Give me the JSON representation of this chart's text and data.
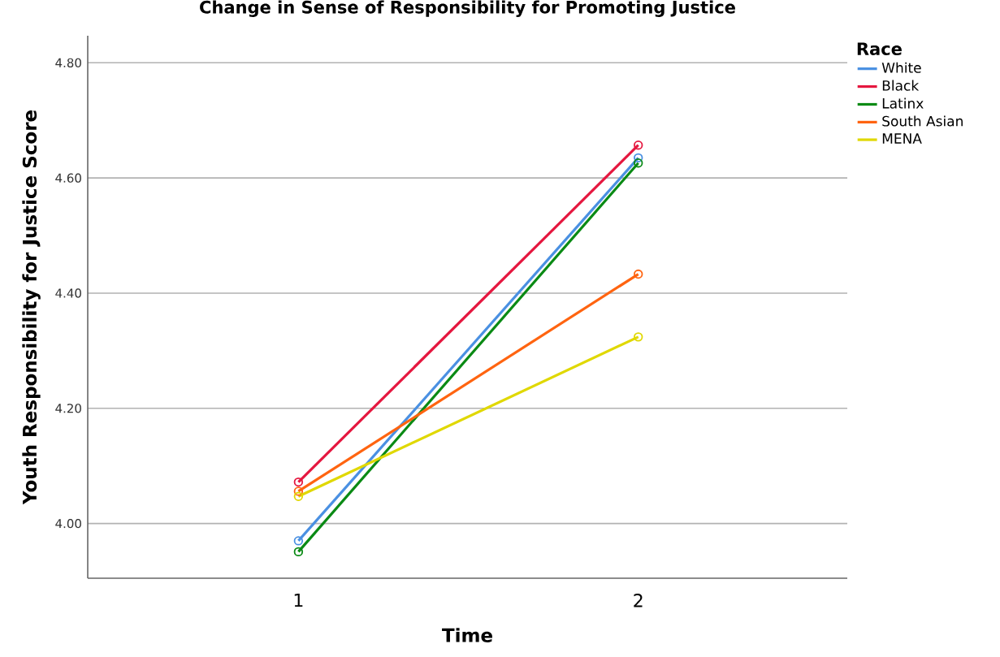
{
  "chart_data": {
    "type": "line",
    "title": "Change in Sense of Responsibility for Promoting Justice",
    "xlabel": "Time",
    "ylabel": "Youth Responsibility for Justice Score",
    "legend_title": "Race",
    "categories": [
      "1",
      "2"
    ],
    "series": [
      {
        "name": "White",
        "color": "#4a90e2",
        "values": [
          3.97,
          4.635
        ]
      },
      {
        "name": "Black",
        "color": "#e5173f",
        "values": [
          4.072,
          4.657
        ]
      },
      {
        "name": "Latinx",
        "color": "#0a8a14",
        "values": [
          3.951,
          4.626
        ]
      },
      {
        "name": "South Asian",
        "color": "#ff6410",
        "values": [
          4.056,
          4.433
        ]
      },
      {
        "name": "MENA",
        "color": "#e0d800",
        "values": [
          4.047,
          4.324
        ]
      }
    ],
    "ylim": [
      3.905,
      4.847
    ],
    "yticks": [
      {
        "value": 4.0,
        "label": "4.00"
      },
      {
        "value": 4.2,
        "label": "4.20"
      },
      {
        "value": 4.4,
        "label": "4.40"
      },
      {
        "value": 4.6,
        "label": "4.60"
      },
      {
        "value": 4.8,
        "label": "4.80"
      }
    ],
    "grid": "y",
    "legend": "top right",
    "marker": "circle",
    "line_style": "solid"
  }
}
